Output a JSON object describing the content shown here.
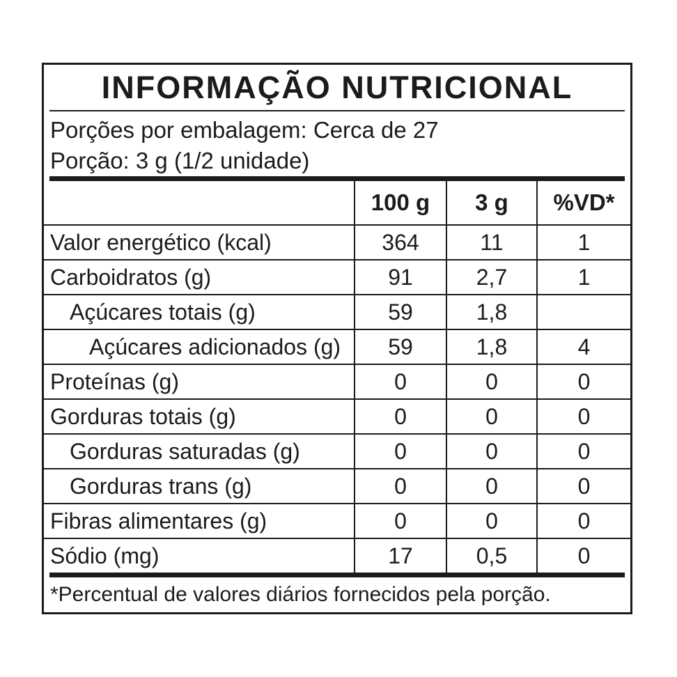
{
  "title": "INFORMAÇÃO NUTRICIONAL",
  "serving_info": {
    "servings_per_package": "Porções por embalagem: Cerca de 27",
    "serving_size": "Porção: 3 g (1/2 unidade)"
  },
  "table": {
    "columns": [
      "",
      "100 g",
      "3 g",
      "%VD*"
    ],
    "rows": [
      {
        "label": "Valor energético (kcal)",
        "indent": 0,
        "per_100g": "364",
        "per_serving": "11",
        "pct_vd": "1"
      },
      {
        "label": "Carboidratos (g)",
        "indent": 0,
        "per_100g": "91",
        "per_serving": "2,7",
        "pct_vd": "1"
      },
      {
        "label": "Açúcares totais (g)",
        "indent": 1,
        "per_100g": "59",
        "per_serving": "1,8",
        "pct_vd": ""
      },
      {
        "label": "Açúcares adicionados (g)",
        "indent": 2,
        "per_100g": "59",
        "per_serving": "1,8",
        "pct_vd": "4"
      },
      {
        "label": "Proteínas (g)",
        "indent": 0,
        "per_100g": "0",
        "per_serving": "0",
        "pct_vd": "0"
      },
      {
        "label": "Gorduras totais (g)",
        "indent": 0,
        "per_100g": "0",
        "per_serving": "0",
        "pct_vd": "0"
      },
      {
        "label": "Gorduras saturadas (g)",
        "indent": 1,
        "per_100g": "0",
        "per_serving": "0",
        "pct_vd": "0"
      },
      {
        "label": "Gorduras trans (g)",
        "indent": 1,
        "per_100g": "0",
        "per_serving": "0",
        "pct_vd": "0"
      },
      {
        "label": "Fibras alimentares (g)",
        "indent": 0,
        "per_100g": "0",
        "per_serving": "0",
        "pct_vd": "0"
      },
      {
        "label": "Sódio (mg)",
        "indent": 0,
        "per_100g": "17",
        "per_serving": "0,5",
        "pct_vd": "0"
      }
    ]
  },
  "footnote": "*Percentual de valores diários fornecidos pela porção.",
  "colors": {
    "text": "#1b1b1b",
    "border": "#1b1b1b",
    "background": "#ffffff"
  }
}
